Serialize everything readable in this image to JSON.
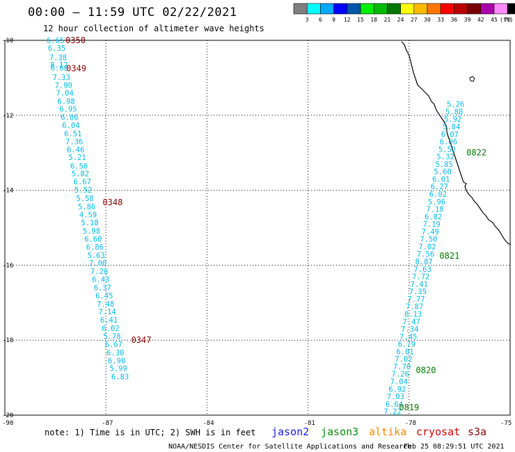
{
  "title": "00:00 – 11:59 UTC 02/22/2021",
  "subtitle": "12 hour collection of altimeter wave heights",
  "note": "note: 1) Time is in UTC; 2) SWH is in feet",
  "footer_left": "NOAA/NESDIS Center for Satellite Applications and Research",
  "footer_right": "Feb 25 08:29:51 UTC 2021",
  "satellites": [
    {
      "name": "jason2",
      "color": "#1a1adc"
    },
    {
      "name": "jason3",
      "color": "#0a8c0a"
    },
    {
      "name": "altika",
      "color": "#f08c00"
    },
    {
      "name": "cryosat",
      "color": "#d40000"
    },
    {
      "name": "s3a",
      "color": "#8b0000"
    }
  ],
  "scale": {
    "unit_label": "(ft)",
    "colors": [
      "#7f7f7f",
      "#00ffff",
      "#00aaff",
      "#0000ff",
      "#0055aa",
      "#00ee00",
      "#00bb00",
      "#007700",
      "#ffff00",
      "#ffbb00",
      "#ff7700",
      "#ff0000",
      "#bb0000",
      "#770000",
      "#aa00aa",
      "#ff88ff",
      "#000000"
    ],
    "labels": [
      "3",
      "6",
      "9",
      "12",
      "15",
      "18",
      "21",
      "24",
      "27",
      "30",
      "33",
      "36",
      "39",
      "42",
      "45",
      "70"
    ]
  },
  "chart_data": {
    "type": "scatter",
    "title": "00:00 – 11:59 UTC 02/22/2021",
    "subtitle": "12 hour collection of altimeter wave heights",
    "xlim": [
      -90,
      -75
    ],
    "ylim": [
      -20,
      -10
    ],
    "x_ticks": [
      "-90",
      "-87",
      "-84",
      "-81",
      "-78",
      "-75"
    ],
    "y_ticks": [
      "-10",
      "-12",
      "-14",
      "-16",
      "-18",
      "-20"
    ],
    "grid": true,
    "value_color": "#00bbe8",
    "series": [
      {
        "name": "s3a",
        "pass_color": "#8b0000",
        "points": [
          {
            "lon": -88.5,
            "lat": -10.0,
            "swh": "6.65"
          },
          {
            "lon": -88.46,
            "lat": -10.2,
            "swh": "6.35"
          },
          {
            "lon": -88.42,
            "lat": -10.45,
            "swh": "7.38"
          },
          {
            "lon": -88.39,
            "lat": -10.65,
            "swh": "8.12"
          },
          {
            "lon": -88.38,
            "lat": -10.73,
            "swh": "6.68"
          },
          {
            "lon": -88.32,
            "lat": -10.98,
            "swh": "7.33"
          },
          {
            "lon": -88.26,
            "lat": -11.2,
            "swh": "7.90"
          },
          {
            "lon": -88.22,
            "lat": -11.4,
            "swh": "7.04"
          },
          {
            "lon": -88.18,
            "lat": -11.62,
            "swh": "6.98"
          },
          {
            "lon": -88.12,
            "lat": -11.83,
            "swh": "6.95"
          },
          {
            "lon": -88.08,
            "lat": -12.05,
            "swh": "6.06"
          },
          {
            "lon": -88.04,
            "lat": -12.26,
            "swh": "6.04"
          },
          {
            "lon": -87.98,
            "lat": -12.49,
            "swh": "6.51"
          },
          {
            "lon": -87.94,
            "lat": -12.7,
            "swh": "7.36"
          },
          {
            "lon": -87.9,
            "lat": -12.91,
            "swh": "6.46"
          },
          {
            "lon": -87.85,
            "lat": -13.12,
            "swh": "5.21"
          },
          {
            "lon": -87.8,
            "lat": -13.35,
            "swh": "6.56"
          },
          {
            "lon": -87.76,
            "lat": -13.55,
            "swh": "5.82"
          },
          {
            "lon": -87.7,
            "lat": -13.77,
            "swh": "6.67"
          },
          {
            "lon": -87.67,
            "lat": -13.99,
            "swh": "5.52"
          },
          {
            "lon": -87.62,
            "lat": -14.21,
            "swh": "5.58"
          },
          {
            "lon": -87.57,
            "lat": -14.43,
            "swh": "5.86"
          },
          {
            "lon": -87.53,
            "lat": -14.65,
            "swh": "4.59"
          },
          {
            "lon": -87.48,
            "lat": -14.86,
            "swh": "5.18"
          },
          {
            "lon": -87.43,
            "lat": -15.08,
            "swh": "5.98"
          },
          {
            "lon": -87.38,
            "lat": -15.3,
            "swh": "6.60"
          },
          {
            "lon": -87.33,
            "lat": -15.51,
            "swh": "6.86"
          },
          {
            "lon": -87.29,
            "lat": -15.73,
            "swh": "5.63"
          },
          {
            "lon": -87.24,
            "lat": -15.94,
            "swh": "7.00"
          },
          {
            "lon": -87.2,
            "lat": -16.16,
            "swh": "7.20"
          },
          {
            "lon": -87.15,
            "lat": -16.37,
            "swh": "6.43"
          },
          {
            "lon": -87.1,
            "lat": -16.6,
            "swh": "6.37"
          },
          {
            "lon": -87.05,
            "lat": -16.81,
            "swh": "6.45"
          },
          {
            "lon": -87.01,
            "lat": -17.03,
            "swh": "7.48"
          },
          {
            "lon": -86.96,
            "lat": -17.24,
            "swh": "7.14"
          },
          {
            "lon": -86.91,
            "lat": -17.46,
            "swh": "6.41"
          },
          {
            "lon": -86.86,
            "lat": -17.68,
            "swh": "6.02"
          },
          {
            "lon": -86.82,
            "lat": -17.89,
            "swh": "5.78"
          },
          {
            "lon": -86.77,
            "lat": -18.11,
            "swh": "6.67"
          },
          {
            "lon": -86.72,
            "lat": -18.33,
            "swh": "6.30"
          },
          {
            "lon": -86.68,
            "lat": -18.54,
            "swh": "6.90"
          },
          {
            "lon": -86.63,
            "lat": -18.75,
            "swh": "5.99"
          },
          {
            "lon": -86.58,
            "lat": -18.97,
            "swh": "6.83"
          }
        ],
        "passes": [
          {
            "lon": -87.9,
            "lat": -10.0,
            "time": "0350"
          },
          {
            "lon": -87.88,
            "lat": -10.75,
            "time": "0349"
          },
          {
            "lon": -86.8,
            "lat": -14.32,
            "time": "0348"
          },
          {
            "lon": -85.95,
            "lat": -18.0,
            "time": "0347"
          }
        ]
      },
      {
        "name": "jason3",
        "pass_color": "#007700",
        "points": [
          {
            "lon": -76.62,
            "lat": -11.7,
            "swh": "5.26"
          },
          {
            "lon": -76.66,
            "lat": -11.9,
            "swh": "5.88"
          },
          {
            "lon": -76.7,
            "lat": -12.1,
            "swh": "5.92"
          },
          {
            "lon": -76.74,
            "lat": -12.3,
            "swh": "5.84"
          },
          {
            "lon": -76.79,
            "lat": -12.5,
            "swh": "6.07"
          },
          {
            "lon": -76.83,
            "lat": -12.7,
            "swh": "6.06"
          },
          {
            "lon": -76.87,
            "lat": -12.9,
            "swh": "5.52"
          },
          {
            "lon": -76.92,
            "lat": -13.1,
            "swh": "5.32"
          },
          {
            "lon": -76.96,
            "lat": -13.3,
            "swh": "5.85"
          },
          {
            "lon": -77.0,
            "lat": -13.5,
            "swh": "5.60"
          },
          {
            "lon": -77.05,
            "lat": -13.7,
            "swh": "6.01"
          },
          {
            "lon": -77.1,
            "lat": -13.9,
            "swh": "6.27"
          },
          {
            "lon": -77.14,
            "lat": -14.1,
            "swh": "6.02"
          },
          {
            "lon": -77.18,
            "lat": -14.3,
            "swh": "5.96"
          },
          {
            "lon": -77.23,
            "lat": -14.5,
            "swh": "7.18"
          },
          {
            "lon": -77.28,
            "lat": -14.7,
            "swh": "6.82"
          },
          {
            "lon": -77.33,
            "lat": -14.9,
            "swh": "7.19"
          },
          {
            "lon": -77.37,
            "lat": -15.1,
            "swh": "7.49"
          },
          {
            "lon": -77.42,
            "lat": -15.3,
            "swh": "7.50"
          },
          {
            "lon": -77.46,
            "lat": -15.5,
            "swh": "7.02"
          },
          {
            "lon": -77.51,
            "lat": -15.7,
            "swh": "7.56"
          },
          {
            "lon": -77.56,
            "lat": -15.9,
            "swh": "8.87"
          },
          {
            "lon": -77.6,
            "lat": -16.1,
            "swh": "7.63"
          },
          {
            "lon": -77.65,
            "lat": -16.3,
            "swh": "7.72"
          },
          {
            "lon": -77.7,
            "lat": -16.5,
            "swh": "7.41"
          },
          {
            "lon": -77.74,
            "lat": -16.7,
            "swh": "7.35"
          },
          {
            "lon": -77.79,
            "lat": -16.9,
            "swh": "7.77"
          },
          {
            "lon": -77.84,
            "lat": -17.1,
            "swh": "7.87"
          },
          {
            "lon": -77.88,
            "lat": -17.3,
            "swh": "8.13"
          },
          {
            "lon": -77.93,
            "lat": -17.5,
            "swh": "7.47"
          },
          {
            "lon": -77.98,
            "lat": -17.7,
            "swh": "7.34"
          },
          {
            "lon": -78.02,
            "lat": -17.9,
            "swh": "7.45"
          },
          {
            "lon": -78.07,
            "lat": -18.1,
            "swh": "6.79"
          },
          {
            "lon": -78.12,
            "lat": -18.3,
            "swh": "6.01"
          },
          {
            "lon": -78.16,
            "lat": -18.5,
            "swh": "7.02"
          },
          {
            "lon": -78.21,
            "lat": -18.7,
            "swh": "7.70"
          },
          {
            "lon": -78.26,
            "lat": -18.9,
            "swh": "7.26"
          },
          {
            "lon": -78.3,
            "lat": -19.1,
            "swh": "7.04"
          },
          {
            "lon": -78.35,
            "lat": -19.3,
            "swh": "6.92"
          },
          {
            "lon": -78.4,
            "lat": -19.5,
            "swh": "7.03"
          },
          {
            "lon": -78.44,
            "lat": -19.7,
            "swh": "6.64"
          },
          {
            "lon": -78.49,
            "lat": -19.9,
            "swh": "7.22"
          }
        ],
        "passes": [
          {
            "lon": -76.0,
            "lat": -13.0,
            "time": "0822"
          },
          {
            "lon": -76.8,
            "lat": -15.75,
            "time": "0821"
          },
          {
            "lon": -77.5,
            "lat": -18.8,
            "time": "0820"
          },
          {
            "lon": -78.0,
            "lat": -19.8,
            "time": "0819"
          }
        ]
      }
    ]
  }
}
